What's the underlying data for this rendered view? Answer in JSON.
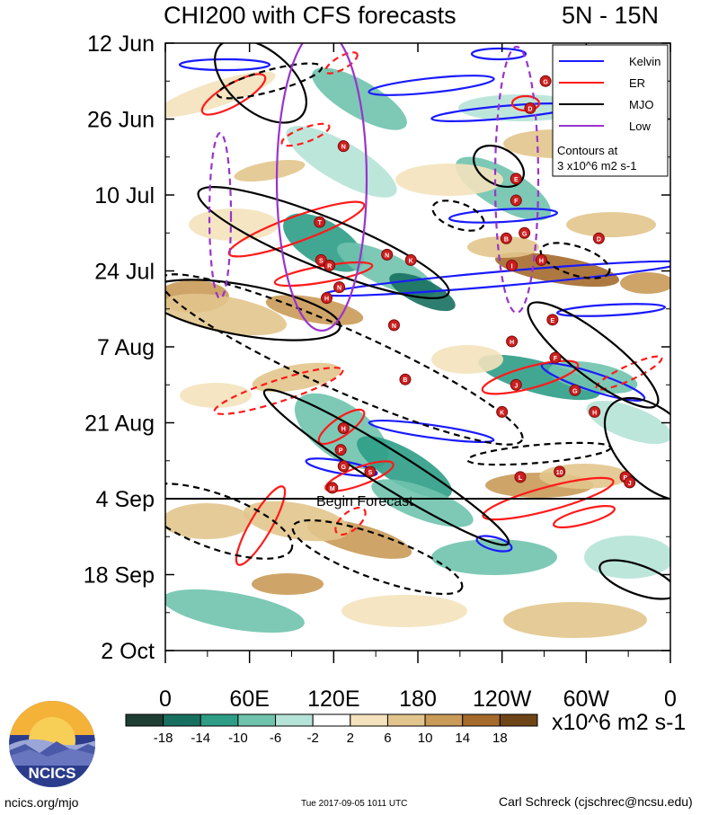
{
  "title": "CHI200 with CFS forecasts",
  "region": "5N - 15N",
  "chart_data": {
    "type": "heatmap",
    "title": "CHI200 with CFS forecasts",
    "subtitle": "5N - 15N",
    "x_tick_labels": [
      "0",
      "60E",
      "120E",
      "180",
      "120W",
      "60W",
      "0"
    ],
    "x_ticks_deg": [
      0,
      60,
      120,
      180,
      240,
      300,
      360
    ],
    "xlim": [
      0,
      360
    ],
    "y_tick_labels": [
      "12 Jun",
      "26 Jun",
      "10 Jul",
      "24 Jul",
      "7 Aug",
      "21 Aug",
      "4 Sep",
      "18 Sep",
      "2 Oct"
    ],
    "y_tick_day": [
      0,
      14,
      28,
      42,
      56,
      70,
      84,
      98,
      112
    ],
    "forecast_start_day": 84,
    "forecast_label": "Begin Forecast",
    "legend": {
      "position": "top-right",
      "entries": [
        {
          "label": "Kelvin",
          "color": "#1a1aff"
        },
        {
          "label": "ER",
          "color": "#ff1a1a"
        },
        {
          "label": "MJO",
          "color": "#000000"
        },
        {
          "label": "Low",
          "color": "#9933cc"
        }
      ],
      "note_line1": "Contours at",
      "note_line2": "3 x10^6 m2 s-1"
    },
    "colorbar": {
      "labels": [
        "-18",
        "-14",
        "-10",
        "-6",
        "-2",
        "2",
        "6",
        "10",
        "14",
        "18"
      ],
      "colors": [
        "#1e3d33",
        "#17705f",
        "#2e9d86",
        "#6fc3ad",
        "#b6e3d7",
        "#ffffff",
        "#f4e2bc",
        "#e2c58c",
        "#c99a58",
        "#a56a2c",
        "#6e4517"
      ],
      "units": "x10^6 m2 s-1"
    },
    "storms": [
      {
        "letter": "G",
        "lon": 271,
        "day": 7
      },
      {
        "letter": "D",
        "lon": 260,
        "day": 12
      },
      {
        "letter": "N",
        "lon": 127,
        "day": 19
      },
      {
        "letter": "E",
        "lon": 250,
        "day": 25
      },
      {
        "letter": "F",
        "lon": 250,
        "day": 29
      },
      {
        "letter": "T",
        "lon": 110,
        "day": 33
      },
      {
        "letter": "G",
        "lon": 256,
        "day": 35
      },
      {
        "letter": "B",
        "lon": 243,
        "day": 36
      },
      {
        "letter": "D",
        "lon": 309,
        "day": 36
      },
      {
        "letter": "N",
        "lon": 158,
        "day": 39
      },
      {
        "letter": "K",
        "lon": 175,
        "day": 40
      },
      {
        "letter": "S",
        "lon": 111,
        "day": 40
      },
      {
        "letter": "R",
        "lon": 117,
        "day": 41
      },
      {
        "letter": "H",
        "lon": 268,
        "day": 40
      },
      {
        "letter": "I",
        "lon": 247,
        "day": 41
      },
      {
        "letter": "N",
        "lon": 124,
        "day": 45
      },
      {
        "letter": "H",
        "lon": 115,
        "day": 47
      },
      {
        "letter": "E",
        "lon": 276,
        "day": 51
      },
      {
        "letter": "N",
        "lon": 163,
        "day": 52
      },
      {
        "letter": "H",
        "lon": 247,
        "day": 55
      },
      {
        "letter": "F",
        "lon": 278,
        "day": 58
      },
      {
        "letter": "B",
        "lon": 171,
        "day": 62
      },
      {
        "letter": "J",
        "lon": 250,
        "day": 63
      },
      {
        "letter": "G",
        "lon": 292,
        "day": 64
      },
      {
        "letter": "H",
        "lon": 306,
        "day": 68
      },
      {
        "letter": "K",
        "lon": 240,
        "day": 68
      },
      {
        "letter": "H",
        "lon": 127,
        "day": 71
      },
      {
        "letter": "P",
        "lon": 125,
        "day": 75
      },
      {
        "letter": "S",
        "lon": 146,
        "day": 79
      },
      {
        "letter": "G",
        "lon": 127,
        "day": 78
      },
      {
        "letter": "L",
        "lon": 253,
        "day": 80
      },
      {
        "letter": "M",
        "lon": 119,
        "day": 82
      },
      {
        "letter": "10",
        "lon": 281,
        "day": 79
      },
      {
        "letter": "B",
        "lon": 328,
        "day": 80
      },
      {
        "letter": "J",
        "lon": 331,
        "day": 81
      }
    ]
  },
  "logo": {
    "text": "NCICS"
  },
  "footer": {
    "left": "ncics.org/mjo",
    "middle": "Tue 2017-09-05 1011 UTC",
    "right": "Carl Schreck (cjschrec@ncsu.edu)"
  }
}
